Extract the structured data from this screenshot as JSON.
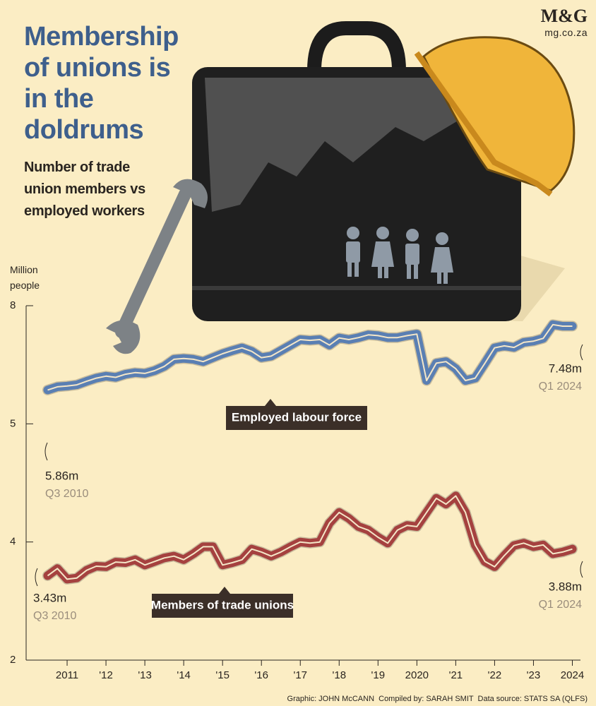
{
  "brand": {
    "logo": "M&G",
    "site": "mg.co.za"
  },
  "chart_data": {
    "type": "line",
    "title": "Membership of unions is in the doldrums",
    "subtitle": "Number of trade union members vs employed workers",
    "y_label": "Million people",
    "x": [
      2010.5,
      2010.75,
      2011,
      2011.25,
      2011.5,
      2011.75,
      2012,
      2012.25,
      2012.5,
      2012.75,
      2013,
      2013.25,
      2013.5,
      2013.75,
      2014,
      2014.25,
      2014.5,
      2014.75,
      2015,
      2015.25,
      2015.5,
      2015.75,
      2016,
      2016.25,
      2016.5,
      2016.75,
      2017,
      2017.25,
      2017.5,
      2017.75,
      2018,
      2018.25,
      2018.5,
      2018.75,
      2019,
      2019.25,
      2019.5,
      2019.75,
      2020,
      2020.25,
      2020.5,
      2020.75,
      2021,
      2021.25,
      2021.5,
      2021.75,
      2022,
      2022.25,
      2022.5,
      2022.75,
      2023,
      2023.25,
      2023.5,
      2023.75,
      2024
    ],
    "series": [
      {
        "name": "Employed labour force",
        "color": "#5a7fb3",
        "values": [
          5.86,
          5.94,
          5.96,
          5.99,
          6.08,
          6.16,
          6.21,
          6.18,
          6.26,
          6.3,
          6.28,
          6.35,
          6.46,
          6.64,
          6.66,
          6.64,
          6.58,
          6.68,
          6.78,
          6.86,
          6.93,
          6.84,
          6.68,
          6.72,
          6.86,
          7.0,
          7.14,
          7.12,
          7.14,
          7.0,
          7.18,
          7.14,
          7.19,
          7.26,
          7.24,
          7.19,
          7.19,
          7.24,
          7.28,
          6.1,
          6.54,
          6.58,
          6.4,
          6.1,
          6.16,
          6.54,
          6.93,
          6.98,
          6.94,
          7.07,
          7.1,
          7.17,
          7.52,
          7.48,
          7.48
        ]
      },
      {
        "name": "Members of trade unions",
        "color": "#a5413f",
        "values": [
          3.43,
          3.55,
          3.37,
          3.39,
          3.52,
          3.59,
          3.58,
          3.66,
          3.65,
          3.7,
          3.61,
          3.67,
          3.73,
          3.76,
          3.7,
          3.8,
          3.92,
          3.92,
          3.61,
          3.65,
          3.7,
          3.88,
          3.83,
          3.76,
          3.83,
          3.92,
          4.0,
          3.98,
          4.0,
          4.16,
          4.25,
          4.2,
          4.13,
          4.1,
          4.04,
          3.98,
          4.1,
          4.14,
          4.13,
          4.25,
          4.37,
          4.32,
          4.39,
          4.25,
          3.95,
          3.67,
          3.58,
          3.77,
          3.94,
          3.98,
          3.92,
          3.95,
          3.8,
          3.83,
          3.88
        ]
      }
    ],
    "annotations": [
      {
        "text": "5.86m",
        "date": "Q3 2010"
      },
      {
        "text": "7.48m",
        "date": "Q1 2024"
      },
      {
        "text": "3.43m",
        "date": "Q3 2010"
      },
      {
        "text": "3.88m",
        "date": "Q1 2024"
      }
    ],
    "xlim": [
      2010,
      2024.3
    ],
    "xticks": [
      2011,
      {
        "value": 2012,
        "label": "'12"
      },
      {
        "value": 2013,
        "label": "'13"
      },
      {
        "value": 2014,
        "label": "'14"
      },
      {
        "value": 2015,
        "label": "'15"
      },
      {
        "value": 2016,
        "label": "'16"
      },
      {
        "value": 2017,
        "label": "'17"
      },
      {
        "value": 2018,
        "label": "'18"
      },
      {
        "value": 2019,
        "label": "'19"
      },
      2020,
      {
        "value": 2021,
        "label": "'21"
      },
      {
        "value": 2022,
        "label": "'22"
      },
      {
        "value": 2023,
        "label": "'23"
      },
      2024
    ],
    "ylim": [
      2,
      8
    ],
    "yticks": [
      2,
      4,
      5,
      8
    ]
  },
  "footer": "Graphic: JOHN McCANN  Compiled by: SARAH SMIT  Data source: STATS SA (QLFS)"
}
